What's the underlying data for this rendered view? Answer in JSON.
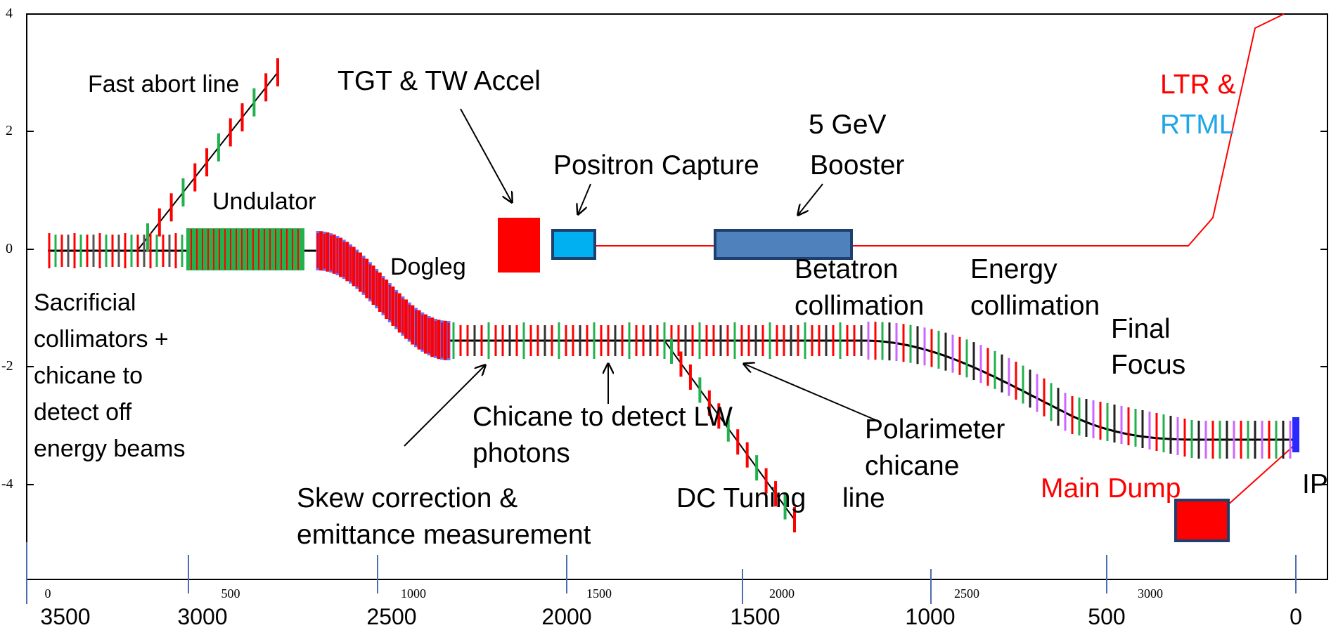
{
  "labels": {
    "fast_abort": "Fast abort line",
    "tgt": "TGT & TW Accel",
    "booster_1": "5 GeV",
    "booster_2": "Booster",
    "positron_capture": "Positron Capture",
    "undulator": "Undulator",
    "ltr_1": "LTR &",
    "ltr_2": "RTML",
    "dogleg": "Dogleg",
    "betatron_1": "Betatron",
    "betatron_2": "collimation",
    "energy_1": "Energy",
    "energy_2": "collimation",
    "final_1": "Final",
    "final_2": "Focus",
    "sacrificial_1": "Sacrificial",
    "sacrificial_2": "collimators +",
    "sacrificial_3": "chicane to",
    "sacrificial_4": "detect off",
    "sacrificial_5": "energy beams",
    "chicane_lw_1": "Chicane to detect LW",
    "chicane_lw_2": "photons",
    "polarimeter_1": "Polarimeter",
    "polarimeter_2": "chicane",
    "polarimeter_3": "line",
    "skew_1": "Skew correction &",
    "skew_2": "emittance measurement",
    "dc_tuning": "DC Tuning",
    "main_dump": "Main Dump",
    "ip": "IP"
  },
  "axes": {
    "y_ticks": [
      "4",
      "2",
      "0",
      "-2",
      "-4"
    ],
    "top_ticks": [
      "0",
      "500",
      "1000",
      "1500",
      "2000",
      "2500",
      "3000"
    ],
    "bottom_ticks": [
      "3500",
      "3000",
      "2500",
      "2000",
      "1500",
      "1000",
      "500",
      "0"
    ]
  },
  "colors": {
    "magnet_red": "#ff0000",
    "quad_green": "#22b14c",
    "capture_cyan": "#00b0f0",
    "booster_blue": "#4f81bd",
    "outline_blue": "#1f3f6f",
    "beamline": "#000000",
    "ltr_red": "#ff0000",
    "blue_text": "#1fa6e8"
  }
}
